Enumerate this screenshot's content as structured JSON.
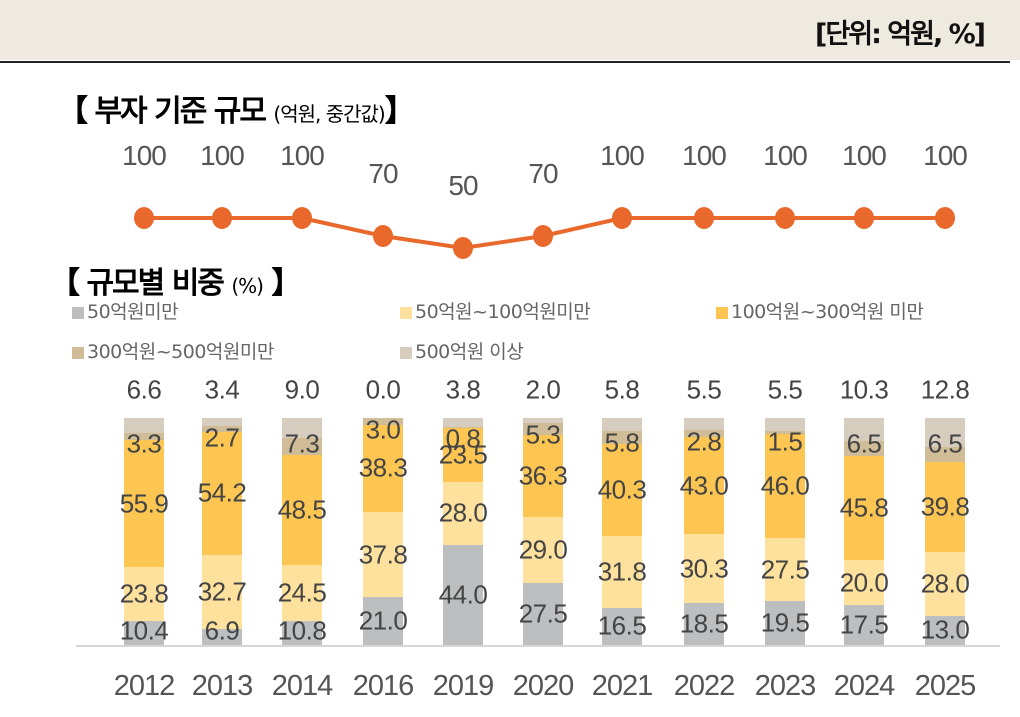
{
  "header": {
    "unit": "[단위: 억원, %]"
  },
  "line_section": {
    "title": "【 부자 기준 규모",
    "subtitle": "(억원, 중간값)",
    "close": "】"
  },
  "bar_section": {
    "title": "【 규모별 비중",
    "subtitle": "(%)",
    "close": "】"
  },
  "colors": {
    "line": "#e8692b",
    "under50": "#bdbec0",
    "50to100": "#fde19d",
    "100to300": "#fdc652",
    "300to500": "#d0bd97",
    "over500": "#d6cdbf"
  },
  "legend": [
    {
      "label": "50억원미만",
      "color": "#bdbec0"
    },
    {
      "label": "50억원~100억원미만",
      "color": "#fde19d"
    },
    {
      "label": "100억원~300억원 미만",
      "color": "#fdc652"
    },
    {
      "label": "300억원~500억원미만",
      "color": "#d0bd97"
    },
    {
      "label": "500억원 이상",
      "color": "#d6cdbf"
    }
  ],
  "chart_data": [
    {
      "type": "line",
      "title": "부자 기준 규모 (억원, 중간값)",
      "categories": [
        "2012",
        "2013",
        "2014",
        "2016",
        "2019",
        "2020",
        "2021",
        "2022",
        "2023",
        "2024",
        "2025"
      ],
      "values": [
        100,
        100,
        100,
        70,
        50,
        70,
        100,
        100,
        100,
        100,
        100
      ],
      "xlabel": "",
      "ylabel": "억원",
      "grid": false
    },
    {
      "type": "bar",
      "stacked": true,
      "title": "규모별 비중 (%)",
      "categories": [
        "2012",
        "2013",
        "2014",
        "2016",
        "2019",
        "2020",
        "2021",
        "2022",
        "2023",
        "2024",
        "2025"
      ],
      "series": [
        {
          "name": "50억원미만",
          "values": [
            10.4,
            6.9,
            10.8,
            21.0,
            44.0,
            27.5,
            16.5,
            18.5,
            19.5,
            17.5,
            13.0
          ]
        },
        {
          "name": "50억원~100억원미만",
          "values": [
            23.8,
            32.7,
            24.5,
            37.8,
            28.0,
            29.0,
            31.8,
            30.3,
            27.5,
            20.0,
            28.0
          ]
        },
        {
          "name": "100억원~300억원 미만",
          "values": [
            55.9,
            54.2,
            48.5,
            38.3,
            23.5,
            36.3,
            40.3,
            43.0,
            46.0,
            45.8,
            39.8
          ]
        },
        {
          "name": "300억원~500억원미만",
          "values": [
            3.3,
            2.7,
            7.3,
            3.0,
            0.8,
            5.3,
            5.8,
            2.8,
            1.5,
            6.5,
            6.5
          ]
        },
        {
          "name": "500억원 이상",
          "values": [
            6.6,
            3.4,
            9.0,
            0.0,
            3.8,
            2.0,
            5.8,
            5.5,
            5.5,
            10.3,
            12.8
          ]
        }
      ],
      "ylim": [
        0,
        100
      ],
      "xlabel": "",
      "ylabel": "%",
      "legend_position": "top",
      "grid": false
    }
  ]
}
